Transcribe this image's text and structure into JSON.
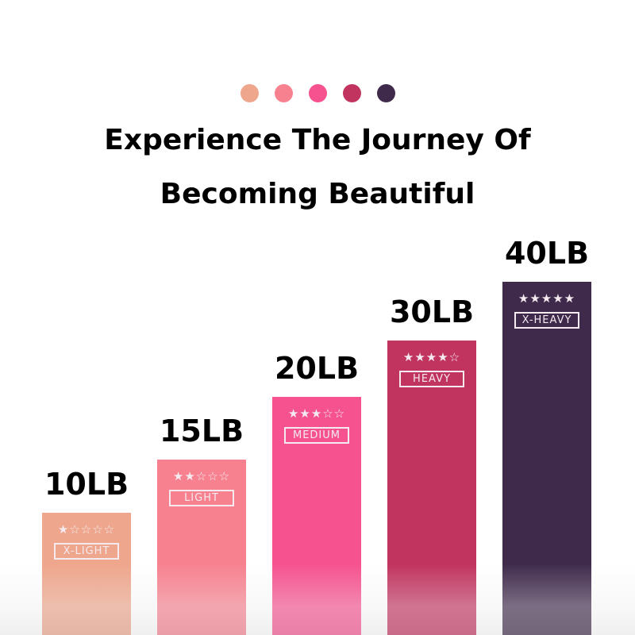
{
  "header": {
    "dots": [
      {
        "color": "#eea68c"
      },
      {
        "color": "#f7818f"
      },
      {
        "color": "#f6528f"
      },
      {
        "color": "#c13460"
      },
      {
        "color": "#3f2a4b"
      }
    ],
    "title_line1": "Experience The Journey Of",
    "title_line2": "Becoming Beautiful"
  },
  "bands": [
    {
      "weight": "10LB",
      "stars": "★☆☆☆☆",
      "rating": 1,
      "level": "X-LIGHT",
      "color": "#eea68c"
    },
    {
      "weight": "15LB",
      "stars": "★★☆☆☆",
      "rating": 2,
      "level": "LIGHT",
      "color": "#f7818f"
    },
    {
      "weight": "20LB",
      "stars": "★★★☆☆",
      "rating": 3,
      "level": "MEDIUM",
      "color": "#f6528f"
    },
    {
      "weight": "30LB",
      "stars": "★★★★☆",
      "rating": 4,
      "level": "HEAVY",
      "color": "#c13460"
    },
    {
      "weight": "40LB",
      "stars": "★★★★★",
      "rating": 5,
      "level": "X-HEAVY",
      "color": "#3f2a4b"
    }
  ]
}
